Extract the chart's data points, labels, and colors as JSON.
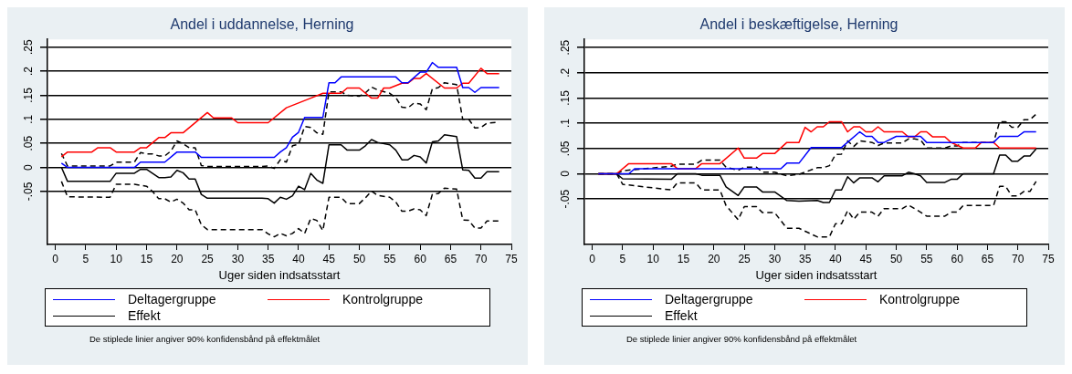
{
  "chart_data": [
    {
      "type": "line",
      "title": "Andel i uddannelse, Herning",
      "xlabel": "Uger siden indsatsstart",
      "legend": "bottom",
      "grid": "y",
      "xlim": [
        -1.3,
        75
      ],
      "xticks": [
        0,
        5,
        10,
        15,
        20,
        25,
        30,
        35,
        40,
        45,
        50,
        55,
        60,
        65,
        70,
        75
      ],
      "ylim": [
        -0.16,
        0.266
      ],
      "yticks": [
        {
          "value": -0.05,
          "label": "-.05"
        },
        0,
        {
          "value": 0.05,
          "label": ".05"
        },
        {
          "value": 0.1,
          "label": ".1"
        },
        {
          "value": 0.15,
          "label": ".15"
        },
        {
          "value": 0.2,
          "label": ".2"
        },
        {
          "value": 0.25,
          "label": ".25"
        }
      ],
      "series": [
        {
          "name": "Deltagergruppe",
          "color": "#0000ff",
          "x": [
            1,
            2,
            13,
            14,
            18,
            20,
            23,
            24,
            36,
            37,
            38,
            39,
            40,
            41,
            44,
            45,
            46,
            47,
            56,
            57,
            58,
            60,
            61,
            62,
            63,
            66,
            67,
            68,
            69,
            70,
            73
          ],
          "values": [
            0.009,
            0,
            0,
            0.011,
            0.011,
            0.032,
            0.032,
            0.021,
            0.021,
            0.032,
            0.041,
            0.063,
            0.073,
            0.104,
            0.104,
            0.176,
            0.176,
            0.188,
            0.188,
            0.176,
            0.176,
            0.198,
            0.198,
            0.218,
            0.208,
            0.208,
            0.166,
            0.166,
            0.156,
            0.166,
            0.166
          ]
        },
        {
          "name": "Kontrolgruppe",
          "color": "#ff0000",
          "x": [
            1,
            2,
            6,
            7,
            9,
            10,
            13,
            14,
            15,
            17,
            18,
            19,
            21,
            25,
            26,
            29,
            30,
            34,
            35,
            38,
            40,
            42,
            44,
            47,
            48,
            50,
            52,
            53,
            54,
            55,
            57,
            58,
            59,
            60,
            61,
            64,
            66,
            67,
            68,
            70,
            71,
            73
          ],
          "values": [
            0.022,
            0.032,
            0.032,
            0.041,
            0.041,
            0.032,
            0.032,
            0.041,
            0.041,
            0.062,
            0.062,
            0.072,
            0.072,
            0.114,
            0.103,
            0.103,
            0.093,
            0.093,
            0.093,
            0.124,
            0.134,
            0.144,
            0.154,
            0.154,
            0.165,
            0.165,
            0.144,
            0.144,
            0.165,
            0.165,
            0.175,
            0.175,
            0.185,
            0.185,
            0.195,
            0.165,
            0.165,
            0.175,
            0.175,
            0.206,
            0.195,
            0.195
          ]
        },
        {
          "name": "Effekt",
          "color": "#000000",
          "x": [
            1,
            2,
            9,
            10,
            13,
            14,
            15,
            17,
            18,
            19,
            20,
            21,
            22,
            23,
            24,
            25,
            34,
            35,
            36,
            37,
            38,
            39,
            40,
            41,
            42,
            43,
            44,
            45,
            47,
            48,
            50,
            51,
            52,
            53,
            55,
            56,
            57,
            58,
            59,
            60,
            61,
            62,
            63,
            64,
            66,
            67,
            68,
            69,
            70,
            71,
            73
          ],
          "values": [
            0,
            -0.029,
            -0.029,
            -0.012,
            -0.012,
            -0.004,
            -0.004,
            -0.021,
            -0.021,
            -0.02,
            -0.006,
            -0.011,
            -0.024,
            -0.024,
            -0.056,
            -0.064,
            -0.064,
            -0.065,
            -0.074,
            -0.062,
            -0.066,
            -0.059,
            -0.039,
            -0.046,
            -0.012,
            -0.026,
            -0.033,
            0.047,
            0.047,
            0.036,
            0.036,
            0.045,
            0.058,
            0.052,
            0.047,
            0.036,
            0.016,
            0.016,
            0.025,
            0.022,
            0.009,
            0.053,
            0.055,
            0.068,
            0.064,
            -0.005,
            -0.006,
            -0.022,
            -0.022,
            -0.009,
            -0.009
          ]
        },
        {
          "color": "#000000",
          "line_style": "dashed",
          "x": [
            1,
            2,
            9,
            10,
            13,
            14,
            15,
            16,
            17,
            18,
            19,
            20,
            21,
            22,
            23,
            24,
            25,
            34,
            35,
            36,
            37,
            38,
            39,
            40,
            41,
            42,
            43,
            44,
            45,
            47,
            48,
            50,
            51,
            52,
            53,
            55,
            56,
            57,
            58,
            59,
            60,
            61,
            62,
            63,
            64,
            66,
            67,
            68,
            69,
            70,
            71,
            73
          ],
          "values": [
            0.029,
            0.003,
            0.003,
            0.011,
            0.011,
            0.031,
            0.028,
            0.028,
            0.024,
            0.024,
            0.034,
            0.055,
            0.049,
            0.041,
            0.041,
            0.004,
            0.002,
            0.002,
            0.003,
            -0.002,
            0.016,
            0.011,
            0.045,
            0.048,
            0.085,
            0.083,
            0.072,
            0.069,
            0.157,
            0.157,
            0.15,
            0.148,
            0.155,
            0.167,
            0.161,
            0.154,
            0.145,
            0.125,
            0.124,
            0.134,
            0.132,
            0.12,
            0.163,
            0.166,
            0.176,
            0.172,
            0.1,
            0.1,
            0.082,
            0.083,
            0.092,
            0.094
          ]
        },
        {
          "color": "#000000",
          "line_style": "dashed",
          "x": [
            1,
            2,
            9,
            10,
            13,
            14,
            15,
            16,
            17,
            18,
            19,
            20,
            21,
            22,
            23,
            24,
            25,
            34,
            35,
            36,
            37,
            38,
            39,
            40,
            41,
            42,
            43,
            44,
            45,
            47,
            48,
            50,
            51,
            52,
            53,
            55,
            56,
            57,
            58,
            59,
            60,
            61,
            62,
            63,
            64,
            66,
            67,
            68,
            69,
            70,
            71,
            73
          ],
          "values": [
            -0.029,
            -0.061,
            -0.062,
            -0.035,
            -0.035,
            -0.037,
            -0.039,
            -0.05,
            -0.065,
            -0.065,
            -0.072,
            -0.066,
            -0.074,
            -0.088,
            -0.088,
            -0.119,
            -0.129,
            -0.129,
            -0.138,
            -0.144,
            -0.137,
            -0.142,
            -0.137,
            -0.127,
            -0.137,
            -0.106,
            -0.11,
            -0.131,
            -0.062,
            -0.062,
            -0.075,
            -0.075,
            -0.063,
            -0.049,
            -0.058,
            -0.062,
            -0.072,
            -0.091,
            -0.091,
            -0.086,
            -0.088,
            -0.1,
            -0.056,
            -0.054,
            -0.043,
            -0.045,
            -0.109,
            -0.11,
            -0.126,
            -0.126,
            -0.111,
            -0.111
          ]
        }
      ],
      "annotations": [
        "De stiplede linier angiver 90% konfidensbånd på effektmålet"
      ]
    },
    {
      "type": "line",
      "title": "Andel i beskæftigelse, Herning",
      "xlabel": "Uger siden indsatsstart",
      "legend": "bottom",
      "grid": "y",
      "xlim": [
        -1.3,
        75
      ],
      "xticks": [
        0,
        5,
        10,
        15,
        20,
        25,
        30,
        35,
        40,
        45,
        50,
        55,
        60,
        65,
        70,
        75
      ],
      "ylim": [
        -0.14,
        0.266
      ],
      "yticks": [
        {
          "value": -0.05,
          "label": "-.05"
        },
        0,
        {
          "value": 0.05,
          "label": ".05"
        },
        {
          "value": 0.1,
          "label": ".1"
        },
        {
          "value": 0.15,
          "label": ".15"
        },
        {
          "value": 0.2,
          "label": ".2"
        },
        {
          "value": 0.25,
          "label": ".25"
        }
      ],
      "series": [
        {
          "name": "Deltagergruppe",
          "color": "#0000ff",
          "x": [
            1,
            6,
            7,
            31,
            32,
            34,
            36,
            41,
            44,
            45,
            46,
            47,
            48,
            50,
            54,
            55,
            66,
            67,
            70,
            71,
            73
          ],
          "values": [
            0,
            0,
            0.01,
            0.01,
            0.021,
            0.021,
            0.052,
            0.052,
            0.083,
            0.074,
            0.074,
            0.062,
            0.062,
            0.074,
            0.074,
            0.062,
            0.062,
            0.074,
            0.074,
            0.083,
            0.083
          ]
        },
        {
          "name": "Kontrolgruppe",
          "color": "#ff0000",
          "x": [
            1,
            4,
            6,
            13,
            14,
            17,
            18,
            21,
            24,
            25,
            27,
            28,
            30,
            32,
            34,
            35,
            36,
            37,
            38,
            39,
            41,
            42,
            43,
            44,
            45,
            46,
            47,
            48,
            51,
            52,
            53,
            54,
            55,
            56,
            58,
            59,
            61,
            63,
            64,
            66,
            67,
            73
          ],
          "values": [
            0,
            0,
            0.02,
            0.02,
            0.01,
            0.01,
            0.02,
            0.02,
            0.051,
            0.031,
            0.031,
            0.04,
            0.04,
            0.062,
            0.062,
            0.092,
            0.083,
            0.093,
            0.093,
            0.103,
            0.103,
            0.083,
            0.093,
            0.093,
            0.083,
            0.083,
            0.093,
            0.083,
            0.083,
            0.073,
            0.073,
            0.083,
            0.083,
            0.073,
            0.073,
            0.062,
            0.051,
            0.051,
            0.062,
            0.062,
            0.051,
            0.051
          ]
        },
        {
          "name": "Effekt",
          "color": "#000000",
          "x": [
            1,
            4,
            5,
            13,
            14,
            17,
            18,
            21,
            22,
            24,
            25,
            27,
            28,
            30,
            32,
            34,
            37,
            38,
            39,
            40,
            41,
            42,
            43,
            44,
            46,
            47,
            48,
            51,
            52,
            53,
            54,
            55,
            58,
            59,
            60,
            61,
            66,
            67,
            68,
            69,
            70,
            71,
            72,
            73
          ],
          "values": [
            0,
            0,
            -0.01,
            -0.011,
            0,
            0,
            -0.003,
            -0.003,
            -0.026,
            -0.043,
            -0.026,
            -0.026,
            -0.036,
            -0.036,
            -0.053,
            -0.054,
            -0.053,
            -0.057,
            -0.057,
            -0.032,
            -0.032,
            -0.006,
            -0.018,
            -0.008,
            -0.008,
            -0.016,
            -0.004,
            -0.004,
            0.003,
            0,
            -0.004,
            -0.017,
            -0.017,
            -0.011,
            -0.011,
            0,
            0,
            0.037,
            0.037,
            0.025,
            0.025,
            0.035,
            0.035,
            0.049
          ]
        },
        {
          "color": "#000000",
          "line_style": "dashed",
          "x": [
            1,
            4,
            5,
            13,
            14,
            17,
            18,
            21,
            22,
            24,
            25,
            27,
            28,
            30,
            32,
            34,
            37,
            38,
            39,
            40,
            41,
            42,
            43,
            44,
            46,
            47,
            48,
            51,
            52,
            53,
            54,
            55,
            58,
            59,
            60,
            61,
            66,
            67,
            68,
            69,
            70,
            71,
            72,
            73
          ],
          "values": [
            0,
            0,
            0.006,
            0.015,
            0.019,
            0.019,
            0.027,
            0.027,
            0.013,
            0.007,
            0.013,
            0.013,
            0.003,
            0.003,
            -0.004,
            -0.001,
            0.012,
            0.012,
            0.016,
            0.038,
            0.039,
            0.065,
            0.054,
            0.065,
            0.062,
            0.056,
            0.061,
            0.061,
            0.069,
            0.069,
            0.067,
            0.051,
            0.051,
            0.055,
            0.055,
            0.062,
            0.062,
            0.103,
            0.103,
            0.092,
            0.092,
            0.107,
            0.107,
            0.118
          ]
        },
        {
          "color": "#000000",
          "line_style": "dashed",
          "x": [
            1,
            4,
            5,
            13,
            14,
            17,
            18,
            21,
            22,
            24,
            25,
            27,
            28,
            30,
            32,
            34,
            37,
            38,
            39,
            40,
            41,
            42,
            43,
            44,
            46,
            47,
            48,
            51,
            52,
            53,
            54,
            55,
            58,
            59,
            60,
            61,
            66,
            67,
            68,
            69,
            70,
            71,
            72,
            73
          ],
          "values": [
            0,
            0,
            -0.021,
            -0.032,
            -0.018,
            -0.018,
            -0.032,
            -0.032,
            -0.063,
            -0.091,
            -0.065,
            -0.065,
            -0.077,
            -0.077,
            -0.108,
            -0.108,
            -0.125,
            -0.125,
            -0.125,
            -0.099,
            -0.099,
            -0.073,
            -0.09,
            -0.076,
            -0.076,
            -0.084,
            -0.069,
            -0.069,
            -0.062,
            -0.069,
            -0.076,
            -0.084,
            -0.084,
            -0.076,
            -0.076,
            -0.063,
            -0.063,
            -0.025,
            -0.025,
            -0.044,
            -0.044,
            -0.035,
            -0.035,
            -0.015
          ]
        }
      ],
      "annotations": [
        "De stiplede linier angiver 90% konfidensbånd på effektmålet"
      ]
    }
  ]
}
